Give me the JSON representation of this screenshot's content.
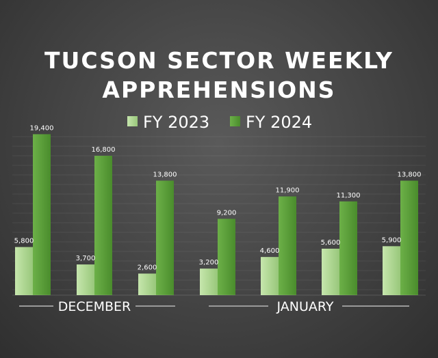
{
  "chart_data": {
    "type": "bar",
    "title_lines": [
      "TUCSON SECTOR WEEKLY",
      "APPREHENSIONS"
    ],
    "series": [
      {
        "name": "FY 2023",
        "values": [
          5800,
          3700,
          2600,
          3200,
          4600,
          5600,
          5900
        ],
        "labels": [
          "5,800",
          "3,700",
          "2,600",
          "3,200",
          "4,600",
          "5,600",
          "5,900"
        ]
      },
      {
        "name": "FY 2024",
        "values": [
          19400,
          16800,
          13800,
          9200,
          11900,
          11300,
          13800
        ],
        "labels": [
          "19,400",
          "16,800",
          "13,800",
          "9,200",
          "11,900",
          "11,300",
          "13,800"
        ]
      }
    ],
    "groups": [
      {
        "label": "DECEMBER",
        "count": 3
      },
      {
        "label": "JANUARY",
        "count": 4
      }
    ],
    "ylim": [
      0,
      21000
    ],
    "grid": true,
    "legend": "top-center",
    "colors": {
      "fy2023": "#a8d48a",
      "fy2024": "#5a9e3a"
    }
  }
}
